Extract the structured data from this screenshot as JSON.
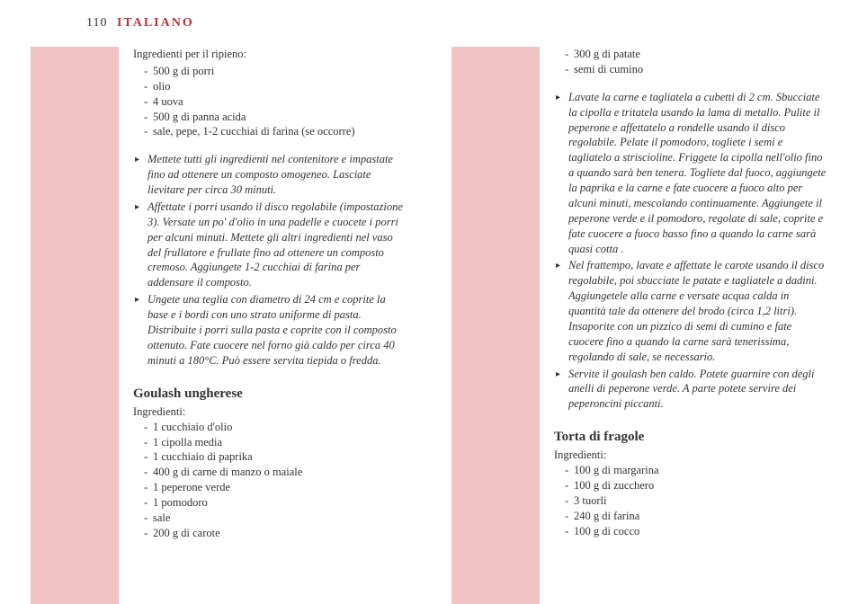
{
  "header": {
    "page_number": "110",
    "language": "ITALIANO"
  },
  "left_column": {
    "filling_label": "Ingredienti per il ripieno:",
    "filling_ingredients": [
      "500 g di porri",
      "olio",
      "4 uova",
      "500 g di panna acida",
      "sale, pepe, 1-2 cucchiai di farina (se occorre)"
    ],
    "filling_steps": [
      "Mettete tutti gli ingredienti nel contenitore e impastate fino ad ottenere un composto omogeneo. Lasciate lievitare per circa 30 minuti.",
      "Affettate i porri usando il disco regolabile (impostazione 3). Versate un po' d'olio in una padelle e cuocete i porri per alcuni minuti. Mettete gli altri ingredienti nel vaso del frullatore e frullate fino ad ottenere un composto cremoso. Aggiungete 1-2 cucchiai di farina per addensare il composto.",
      "Ungete una teglia con diametro di 24 cm e coprite la base e i bordi con uno strato uniforme di pasta. Distribuite i porri sulla pasta e coprite con il composto ottenuto. Fate cuocere nel forno già caldo per circa 40 minuti a 180°C. Può essere servita tiepida o fredda."
    ],
    "recipe2_title": "Goulash ungherese",
    "recipe2_label": "Ingredienti:",
    "recipe2_ingredients": [
      "1 cucchiaio d'olio",
      "1 cipolla media",
      "1 cucchiaio di paprika",
      "400 g di carne di manzo o maiale",
      "1 peperone verde",
      "1 pomodoro",
      "sale",
      "200 g di carote"
    ]
  },
  "right_column": {
    "cont_ingredients": [
      "300 g di patate",
      "semi di cumino"
    ],
    "goulash_steps": [
      "Lavate la carne e tagliatela a cubetti di 2 cm. Sbucciate la cipolla e tritatela usando la lama di metallo. Pulite il peperone e affettatelo a rondelle usando il disco regolabile. Pelate il pomodoro, togliete i semi e tagliatelo a striscioline. Friggete la cipolla nell'olio fino a quando sarà ben tenera. Togliete dal fuoco,  aggiungete la paprika e la carne e fate cuocere a fuoco alto per alcuni minuti, mescolando continuamente. Aggiungete il peperone verde e il pomodoro, regolate di sale, coprite e fate cuocere a fuoco basso fino a quando la carne sarà quasi cotta .",
      "Nel frattempo, lavate e affettate le carote usando il disco regolabile, poi sbucciate le patate e tagliatele a dadini. Aggiungetele alla carne e versate acqua calda in quantità tale da ottenere del brodo (circa 1,2 litri). Insaporite con un pizzico di semi di cumino e fate cuocere fino a quando la carne sarà tenerissima, regolando di sale, se necessario.",
      "Servite il goulash ben caldo. Potete guarnire con degli anelli di peperone verde. A parte potete servire dei peperoncini piccanti."
    ],
    "recipe3_title": "Torta di fragole",
    "recipe3_label": "Ingredienti:",
    "recipe3_ingredients": [
      "100 g di margarina",
      "100 g di zucchero",
      "3 tuorli",
      "240 g di farina",
      "100 g di cocco"
    ]
  }
}
